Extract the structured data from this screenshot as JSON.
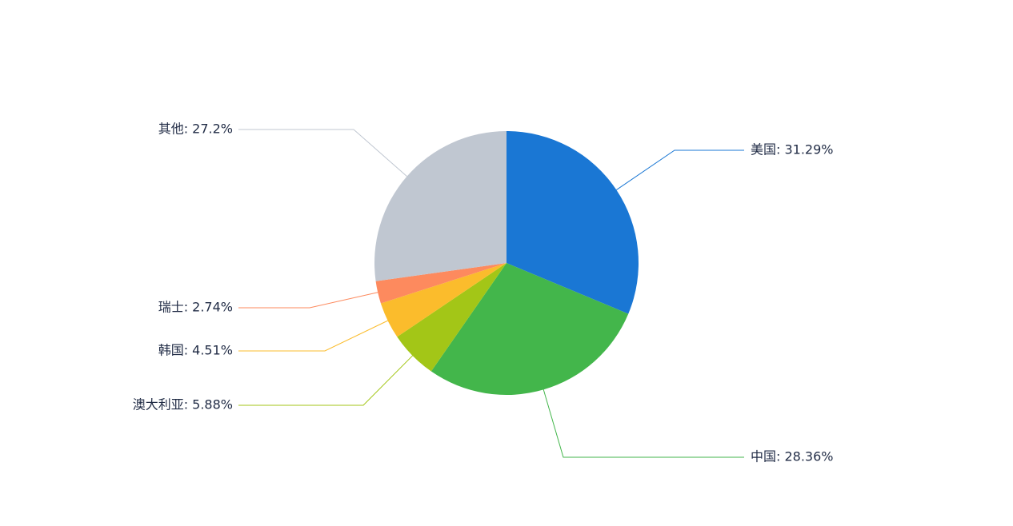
{
  "chart_data": {
    "type": "pie",
    "title": "",
    "slices": [
      {
        "name": "美国",
        "value": 31.29,
        "label": "美国: 31.29%",
        "color": "#1a77d4"
      },
      {
        "name": "中国",
        "value": 28.36,
        "label": "中国: 28.36%",
        "color": "#43b64b"
      },
      {
        "name": "澳大利亚",
        "value": 5.88,
        "label": "澳大利亚: 5.88%",
        "color": "#a3c617"
      },
      {
        "name": "韩国",
        "value": 4.51,
        "label": "韩国: 4.51%",
        "color": "#fbbc2c"
      },
      {
        "name": "瑞士",
        "value": 2.74,
        "label": "瑞士: 2.74%",
        "color": "#fd8a5e"
      },
      {
        "name": "其他",
        "value": 27.2,
        "label": "其他: 27.2%",
        "color": "#c0c7d1"
      }
    ],
    "start_angle": "top (12 o'clock), clockwise",
    "legend": "none"
  }
}
